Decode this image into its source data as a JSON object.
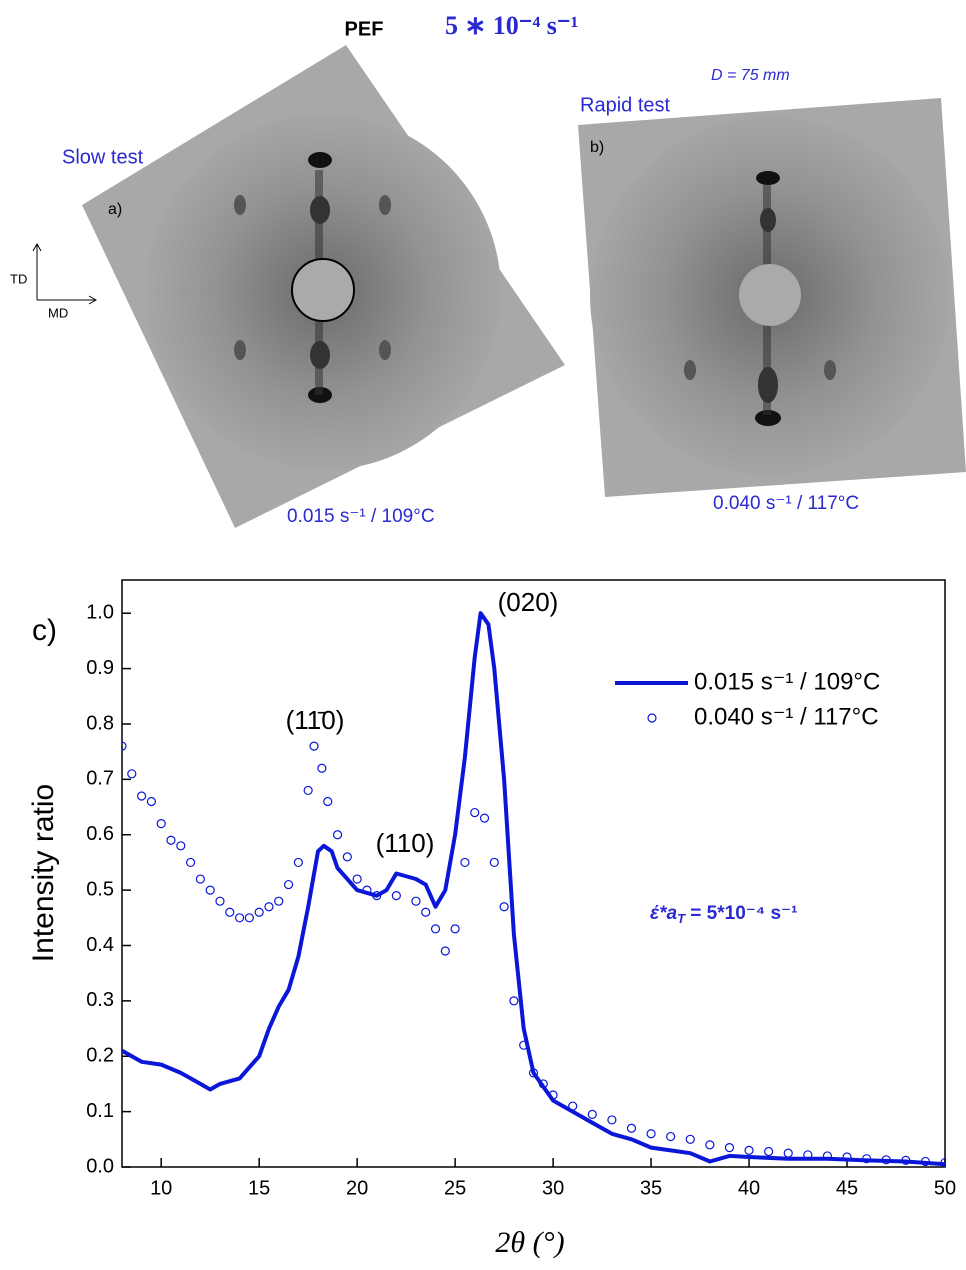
{
  "header": {
    "material": "PEF",
    "rate": "5 ∗ 10⁻⁴ s⁻¹"
  },
  "panels": [
    {
      "label": "a)",
      "test": "Slow test",
      "condition": "0.015 s⁻¹ / 109°C"
    },
    {
      "label": "b)",
      "test": "Rapid test",
      "condition": "0.040 s⁻¹ / 117°C",
      "distance": "D = 75 mm"
    }
  ],
  "axes_indicator": {
    "vertical": "TD",
    "horizontal": "MD"
  },
  "chart_data": {
    "type": "line",
    "panel_label": "c)",
    "x_label": "2θ (°)",
    "y_label": "Intensity ratio",
    "xlim": [
      8,
      50
    ],
    "ylim": [
      0,
      1.06
    ],
    "xticks": [
      10,
      15,
      20,
      25,
      30,
      35,
      40,
      45,
      50
    ],
    "yticks": [
      {
        "value": 0,
        "label": "0.0"
      },
      0.1,
      0.2,
      0.3,
      0.4,
      0.5,
      0.6,
      0.7,
      0.8,
      0.9,
      {
        "value": 1,
        "label": "1.0"
      }
    ],
    "legend": "upper right",
    "annotations": {
      "peak_020": "(020)",
      "peak_1-10": "(11̄0)",
      "peak_110": "(110)",
      "rate_a": "έ*a",
      "rate_sub": "T",
      "rate_b": " = 5*10⁻⁴ s⁻¹"
    },
    "series": [
      {
        "name": "0.015 s⁻¹ / 109°C",
        "color": "#0a16d8",
        "style": "line",
        "x": [
          8,
          9,
          10,
          11,
          12,
          12.5,
          13,
          14,
          15,
          15.5,
          16,
          16.5,
          17,
          17.5,
          18,
          18.3,
          18.7,
          19,
          19.5,
          20,
          21,
          21.5,
          22,
          23,
          23.5,
          24,
          24.5,
          25,
          25.5,
          26,
          26.3,
          26.7,
          27,
          27.5,
          28,
          28.5,
          29,
          30,
          31,
          32,
          33,
          34,
          35,
          36,
          37,
          38,
          39,
          40,
          42,
          44,
          46,
          48,
          50
        ],
        "values": [
          0.21,
          0.19,
          0.185,
          0.17,
          0.15,
          0.14,
          0.15,
          0.16,
          0.2,
          0.25,
          0.29,
          0.32,
          0.38,
          0.47,
          0.57,
          0.58,
          0.57,
          0.54,
          0.52,
          0.5,
          0.49,
          0.5,
          0.53,
          0.52,
          0.51,
          0.47,
          0.5,
          0.6,
          0.74,
          0.92,
          1.0,
          0.98,
          0.9,
          0.7,
          0.42,
          0.25,
          0.17,
          0.12,
          0.1,
          0.08,
          0.06,
          0.05,
          0.035,
          0.03,
          0.025,
          0.01,
          0.02,
          0.018,
          0.015,
          0.015,
          0.012,
          0.01,
          0.005
        ]
      },
      {
        "name": "0.040 s⁻¹ / 117°C",
        "color": "#0a16d8",
        "style": "open-circle",
        "x": [
          8,
          8.5,
          9,
          9.5,
          10,
          10.5,
          11,
          11.5,
          12,
          12.5,
          13,
          13.5,
          14,
          14.5,
          15,
          15.5,
          16,
          16.5,
          17,
          17.5,
          17.8,
          18.2,
          18.5,
          19,
          19.5,
          20,
          20.5,
          21,
          22,
          23,
          23.5,
          24,
          24.5,
          25,
          25.5,
          26,
          26.5,
          27,
          27.5,
          28,
          28.5,
          29,
          29.5,
          30,
          31,
          32,
          33,
          34,
          35,
          36,
          37,
          38,
          39,
          40,
          41,
          42,
          43,
          44,
          45,
          46,
          47,
          48,
          49,
          50
        ],
        "values": [
          0.76,
          0.71,
          0.67,
          0.66,
          0.62,
          0.59,
          0.58,
          0.55,
          0.52,
          0.5,
          0.48,
          0.46,
          0.45,
          0.45,
          0.46,
          0.47,
          0.48,
          0.51,
          0.55,
          0.68,
          0.76,
          0.72,
          0.66,
          0.6,
          0.56,
          0.52,
          0.5,
          0.49,
          0.49,
          0.48,
          0.46,
          0.43,
          0.39,
          0.43,
          0.55,
          0.64,
          0.63,
          0.55,
          0.47,
          0.3,
          0.22,
          0.17,
          0.15,
          0.13,
          0.11,
          0.095,
          0.085,
          0.07,
          0.06,
          0.055,
          0.05,
          0.04,
          0.035,
          0.03,
          0.028,
          0.025,
          0.022,
          0.02,
          0.018,
          0.015,
          0.013,
          0.012,
          0.01,
          0.008
        ]
      }
    ]
  }
}
